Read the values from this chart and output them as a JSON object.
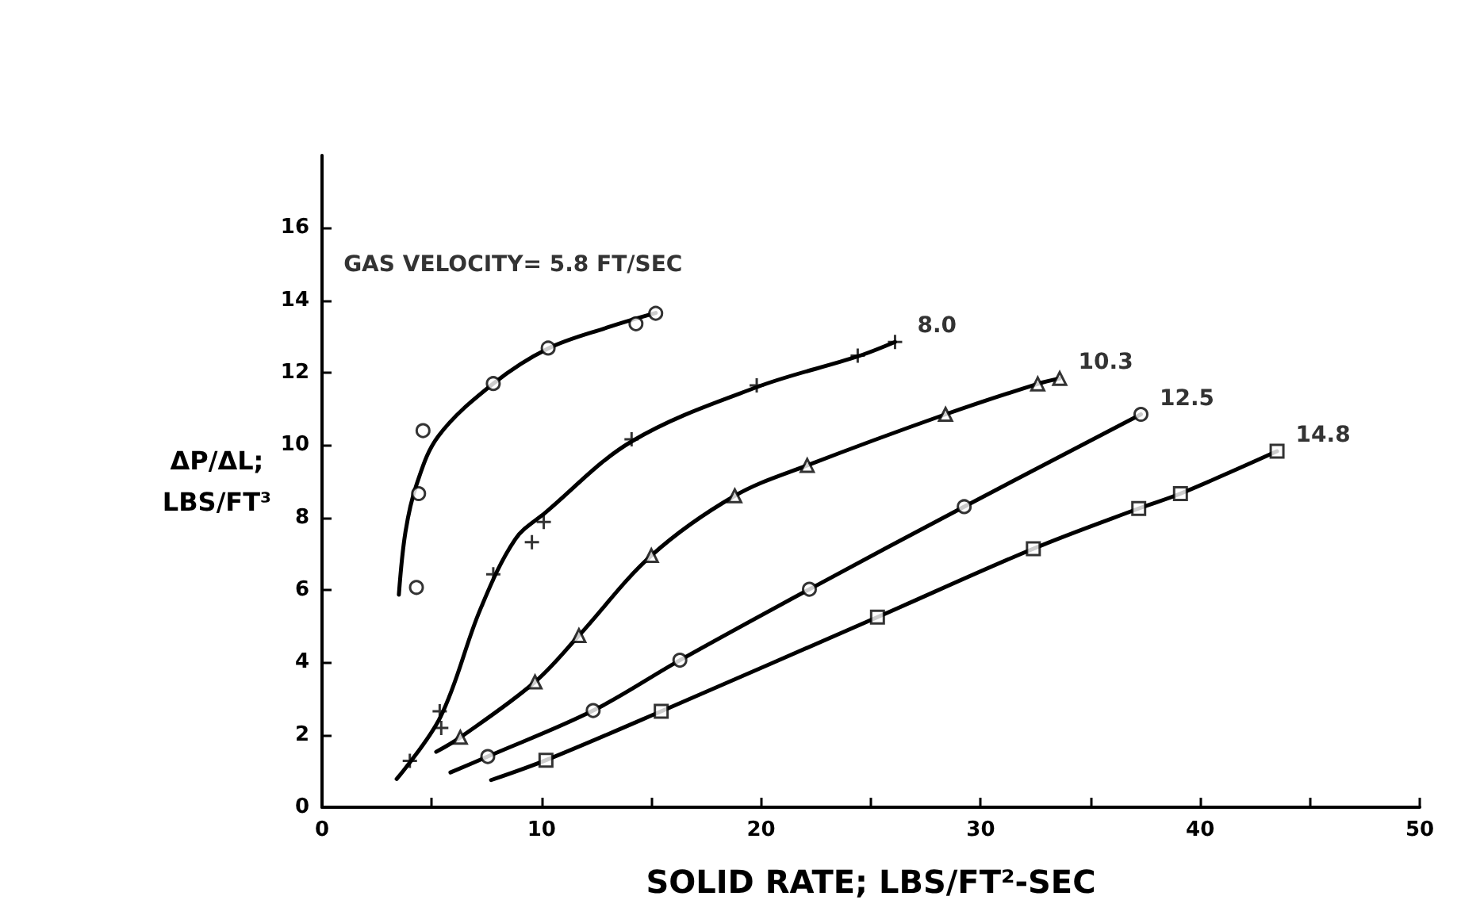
{
  "chart_data": {
    "type": "scatter",
    "xlabel": "SOLID RATE; LBS/FT²-SEC",
    "ylabel": "ΔP/ΔL;\nLBS/FT³",
    "xlim": [
      0,
      50
    ],
    "ylim": [
      0,
      18
    ],
    "xticks": [
      0,
      {
        "value": 5,
        "label": null
      },
      10,
      {
        "value": 15,
        "label": null
      },
      20,
      {
        "value": 25,
        "label": null
      },
      30,
      {
        "value": 35,
        "label": null
      },
      40,
      {
        "value": 45,
        "label": null
      },
      50
    ],
    "yticks": [
      0,
      2,
      4,
      6,
      8,
      10,
      12,
      14,
      16
    ],
    "grid": false,
    "legend": false,
    "series": [
      {
        "name": "GAS VELOCITY= 5.8 FT/SEC",
        "color": "#000000",
        "marker": "circle",
        "x": [
          4.3,
          4.4,
          4.6,
          7.8,
          10.3,
          14.3,
          15.2
        ],
        "values": [
          6.07,
          8.66,
          10.4,
          11.7,
          12.68,
          13.35,
          13.64
        ]
      },
      {
        "name": "8.0",
        "color": "#000000",
        "marker": "cross",
        "x": [
          4.0,
          5.36,
          5.43,
          7.8,
          9.56,
          10.1,
          14.1,
          19.8,
          24.4,
          26.1
        ],
        "values": [
          1.28,
          2.65,
          2.19,
          6.43,
          7.32,
          7.88,
          10.16,
          11.65,
          12.47,
          12.85
        ]
      },
      {
        "name": "10.3",
        "color": "#000000",
        "marker": "triangle",
        "x": [
          6.3,
          9.7,
          11.7,
          15.0,
          18.8,
          22.1,
          28.4,
          32.6,
          33.6
        ],
        "values": [
          1.93,
          3.46,
          4.74,
          6.95,
          8.6,
          9.44,
          10.85,
          11.69,
          11.84
        ]
      },
      {
        "name": "12.5",
        "color": "#000000",
        "marker": "circle",
        "x": [
          7.55,
          12.35,
          16.3,
          22.2,
          29.25,
          37.3
        ],
        "values": [
          1.4,
          2.67,
          4.06,
          6.02,
          8.3,
          10.85
        ]
      },
      {
        "name": "14.8",
        "color": "#000000",
        "marker": "square",
        "x": [
          10.2,
          15.45,
          25.3,
          32.4,
          37.2,
          39.1,
          43.5
        ],
        "values": [
          1.3,
          2.65,
          5.25,
          7.14,
          8.25,
          8.66,
          9.83
        ]
      },
      {
        "type": "line",
        "color": "#000000",
        "marker": "none",
        "line_style": "solid",
        "x": [
          3.5,
          3.8,
          4.3,
          5.3,
          7.8,
          10.3,
          13.0,
          15.2
        ],
        "values": [
          5.87,
          7.6,
          8.9,
          10.25,
          11.7,
          12.67,
          13.25,
          13.65
        ]
      },
      {
        "type": "line",
        "color": "#000000",
        "marker": "none",
        "line_style": "solid",
        "x": [
          3.4,
          5.4,
          7.2,
          8.8,
          10.2,
          14.1,
          19.8,
          24.4,
          26.1
        ],
        "values": [
          0.78,
          2.5,
          5.45,
          7.4,
          8.15,
          10.1,
          11.6,
          12.45,
          12.85
        ]
      },
      {
        "type": "line",
        "color": "#000000",
        "marker": "none",
        "line_style": "solid",
        "x": [
          5.2,
          6.3,
          9.7,
          11.7,
          15.0,
          18.8,
          22.1,
          28.4,
          32.6,
          33.6
        ],
        "values": [
          1.53,
          1.93,
          3.46,
          4.74,
          6.95,
          8.6,
          9.44,
          10.85,
          11.69,
          11.84
        ]
      },
      {
        "type": "line",
        "color": "#000000",
        "marker": "none",
        "line_style": "solid",
        "x": [
          5.85,
          7.55,
          12.35,
          16.3,
          22.2,
          29.25,
          37.3
        ],
        "values": [
          0.96,
          1.4,
          2.67,
          4.06,
          6.02,
          8.3,
          10.85
        ]
      },
      {
        "type": "line",
        "color": "#000000",
        "marker": "none",
        "line_style": "solid",
        "x": [
          7.7,
          10.2,
          15.45,
          25.3,
          32.4,
          37.2,
          39.1,
          43.5
        ],
        "values": [
          0.75,
          1.3,
          2.65,
          5.25,
          7.14,
          8.25,
          8.66,
          9.83
        ]
      }
    ]
  }
}
